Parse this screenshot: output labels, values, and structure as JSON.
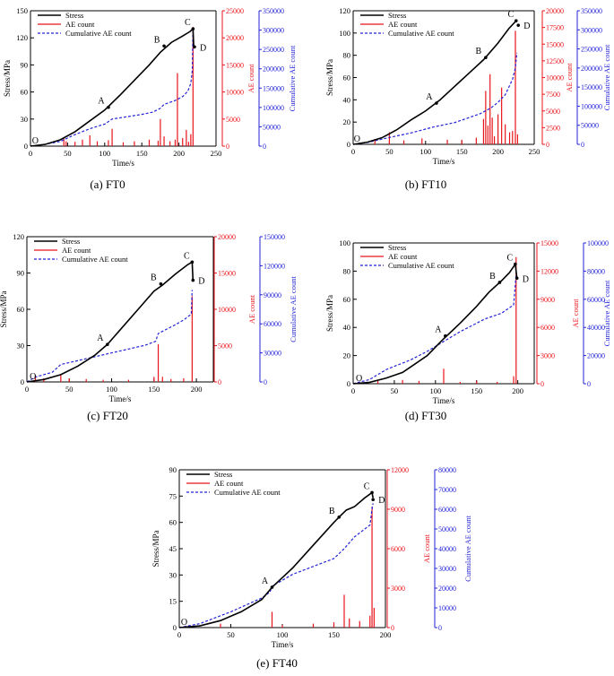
{
  "colors": {
    "stress": "#000000",
    "ae": "#e8141b",
    "cum": "#2323d6"
  },
  "chart_data": [
    {
      "type": "line",
      "caption": "(a) FT0",
      "xlabel": "Time/s",
      "ylabel_left": "Stress/MPa",
      "ylabel_ae": "AE count",
      "ylabel_cum": "Cumulative AE count",
      "xlim": [
        0,
        250
      ],
      "xticks": [
        0,
        50,
        100,
        150,
        200,
        250
      ],
      "ylim_stress": [
        0,
        150
      ],
      "yticks_stress": [
        0,
        30,
        60,
        90,
        120,
        150
      ],
      "ylim_ae": [
        0,
        25000
      ],
      "yticks_ae": [
        0,
        5000,
        10000,
        15000,
        20000,
        25000
      ],
      "ylim_cum": [
        0,
        350000
      ],
      "yticks_cum": [
        0,
        50000,
        100000,
        150000,
        200000,
        250000,
        300000,
        350000
      ],
      "legend": [
        "Stress",
        "AE count",
        "Cumulative AE count"
      ],
      "stress": [
        [
          0,
          0
        ],
        [
          20,
          2
        ],
        [
          40,
          7
        ],
        [
          60,
          16
        ],
        [
          80,
          28
        ],
        [
          100,
          40
        ],
        [
          120,
          56
        ],
        [
          140,
          73
        ],
        [
          160,
          90
        ],
        [
          175,
          104
        ],
        [
          190,
          115
        ],
        [
          205,
          122
        ],
        [
          215,
          127
        ],
        [
          219,
          130
        ],
        [
          220,
          110
        ]
      ],
      "ae_counts": [
        [
          45,
          1400
        ],
        [
          48,
          900
        ],
        [
          60,
          800
        ],
        [
          70,
          1200
        ],
        [
          80,
          2000
        ],
        [
          90,
          900
        ],
        [
          105,
          1100
        ],
        [
          110,
          3200
        ],
        [
          125,
          700
        ],
        [
          140,
          900
        ],
        [
          160,
          1200
        ],
        [
          172,
          1000
        ],
        [
          175,
          5000
        ],
        [
          180,
          1800
        ],
        [
          188,
          900
        ],
        [
          195,
          1200
        ],
        [
          198,
          13500
        ],
        [
          205,
          1500
        ],
        [
          210,
          3000
        ],
        [
          213,
          800
        ],
        [
          216,
          2200
        ],
        [
          219,
          22000
        ]
      ],
      "cumulative": [
        [
          0,
          0
        ],
        [
          20,
          5000
        ],
        [
          40,
          12000
        ],
        [
          60,
          30000
        ],
        [
          80,
          45000
        ],
        [
          100,
          57000
        ],
        [
          110,
          70000
        ],
        [
          130,
          76000
        ],
        [
          150,
          82000
        ],
        [
          165,
          88000
        ],
        [
          175,
          98000
        ],
        [
          180,
          108000
        ],
        [
          195,
          118000
        ],
        [
          205,
          128000
        ],
        [
          212,
          142000
        ],
        [
          216,
          162000
        ],
        [
          218,
          195000
        ],
        [
          219,
          305000
        ],
        [
          220,
          300000
        ]
      ],
      "points": [
        {
          "label": "O",
          "x": 4,
          "y": 0
        },
        {
          "label": "A",
          "x": 105,
          "y": 43
        },
        {
          "label": "B",
          "x": 180,
          "y": 111
        },
        {
          "label": "C",
          "x": 219,
          "y": 130
        },
        {
          "label": "D",
          "x": 221,
          "y": 110
        }
      ]
    },
    {
      "type": "line",
      "caption": "(b) FT10",
      "xlabel": "Time/s",
      "ylabel_left": "Stress/MPa",
      "ylabel_ae": "AE count",
      "ylabel_cum": "Cumulative AE count",
      "xlim": [
        0,
        250
      ],
      "xticks": [
        0,
        50,
        100,
        150,
        200,
        250
      ],
      "ylim_stress": [
        0,
        120
      ],
      "yticks_stress": [
        0,
        20,
        40,
        60,
        80,
        100,
        120
      ],
      "ylim_ae": [
        0,
        20000
      ],
      "yticks_ae": [
        0,
        2500,
        5000,
        7500,
        10000,
        12500,
        15000,
        17500,
        20000
      ],
      "ylim_cum": [
        0,
        350000
      ],
      "yticks_cum": [
        0,
        50000,
        100000,
        150000,
        200000,
        250000,
        300000,
        350000
      ],
      "legend": [
        "Stress",
        "AE count",
        "Cumulative AE count"
      ],
      "stress": [
        [
          0,
          0
        ],
        [
          20,
          2
        ],
        [
          40,
          6
        ],
        [
          60,
          13
        ],
        [
          80,
          22
        ],
        [
          100,
          30
        ],
        [
          120,
          40
        ],
        [
          140,
          52
        ],
        [
          160,
          64
        ],
        [
          180,
          76
        ],
        [
          200,
          91
        ],
        [
          215,
          104
        ],
        [
          225,
          111
        ]
      ],
      "ae_counts": [
        [
          30,
          800
        ],
        [
          50,
          1800
        ],
        [
          70,
          600
        ],
        [
          95,
          900
        ],
        [
          130,
          700
        ],
        [
          150,
          700
        ],
        [
          170,
          1000
        ],
        [
          180,
          3800
        ],
        [
          183,
          8000
        ],
        [
          186,
          2800
        ],
        [
          189,
          10500
        ],
        [
          192,
          4000
        ],
        [
          195,
          1200
        ],
        [
          200,
          4500
        ],
        [
          205,
          8500
        ],
        [
          210,
          3000
        ],
        [
          216,
          1800
        ],
        [
          220,
          2000
        ],
        [
          224,
          17000
        ],
        [
          227,
          1500
        ]
      ],
      "cumulative": [
        [
          0,
          0
        ],
        [
          20,
          5000
        ],
        [
          50,
          18000
        ],
        [
          80,
          30000
        ],
        [
          110,
          45000
        ],
        [
          140,
          57000
        ],
        [
          160,
          70000
        ],
        [
          175,
          80000
        ],
        [
          190,
          95000
        ],
        [
          200,
          110000
        ],
        [
          210,
          130000
        ],
        [
          215,
          150000
        ],
        [
          220,
          170000
        ],
        [
          224,
          200000
        ],
        [
          226,
          240000
        ]
      ],
      "points": [
        {
          "label": "O",
          "x": 3,
          "y": 0
        },
        {
          "label": "A",
          "x": 115,
          "y": 37
        },
        {
          "label": "B",
          "x": 183,
          "y": 78
        },
        {
          "label": "C",
          "x": 225,
          "y": 111
        },
        {
          "label": "D",
          "x": 228,
          "y": 107
        }
      ]
    },
    {
      "type": "line",
      "caption": "(c) FT20",
      "xlabel": "Time/s",
      "ylabel_left": "Stress/MPa",
      "ylabel_ae": "AE count",
      "ylabel_cum": "Cumulative AE count",
      "xlim": [
        0,
        220
      ],
      "xticks": [
        0,
        50,
        100,
        150,
        200
      ],
      "ylim_stress": [
        0,
        120
      ],
      "yticks_stress": [
        0,
        30,
        60,
        90,
        120
      ],
      "ylim_ae": [
        0,
        20000
      ],
      "yticks_ae": [
        0,
        5000,
        10000,
        15000,
        20000
      ],
      "ylim_cum": [
        0,
        150000
      ],
      "yticks_cum": [
        0,
        30000,
        60000,
        90000,
        120000,
        150000
      ],
      "legend": [
        "Stress",
        "AE count",
        "Cumulative AE count"
      ],
      "stress": [
        [
          0,
          0
        ],
        [
          20,
          2
        ],
        [
          40,
          6
        ],
        [
          60,
          13
        ],
        [
          80,
          22
        ],
        [
          95,
          31
        ],
        [
          110,
          43
        ],
        [
          130,
          59
        ],
        [
          150,
          75
        ],
        [
          160,
          80
        ],
        [
          175,
          89
        ],
        [
          190,
          97
        ],
        [
          195,
          99
        ],
        [
          196,
          84
        ]
      ],
      "ae_counts": [
        [
          10,
          900
        ],
        [
          20,
          500
        ],
        [
          40,
          1100
        ],
        [
          50,
          500
        ],
        [
          70,
          400
        ],
        [
          90,
          300
        ],
        [
          120,
          300
        ],
        [
          150,
          700
        ],
        [
          155,
          5200
        ],
        [
          160,
          700
        ],
        [
          170,
          400
        ],
        [
          185,
          500
        ],
        [
          195,
          11800
        ]
      ],
      "cumulative": [
        [
          0,
          0
        ],
        [
          10,
          5000
        ],
        [
          30,
          10000
        ],
        [
          40,
          18000
        ],
        [
          60,
          22000
        ],
        [
          80,
          26000
        ],
        [
          100,
          30000
        ],
        [
          120,
          34000
        ],
        [
          140,
          38000
        ],
        [
          152,
          42000
        ],
        [
          155,
          50000
        ],
        [
          175,
          59000
        ],
        [
          185,
          64000
        ],
        [
          194,
          70000
        ],
        [
          195,
          95000
        ]
      ],
      "points": [
        {
          "label": "O",
          "x": 5,
          "y": 0
        },
        {
          "label": "A",
          "x": 95,
          "y": 31
        },
        {
          "label": "B",
          "x": 158,
          "y": 81
        },
        {
          "label": "C",
          "x": 195,
          "y": 99
        },
        {
          "label": "D",
          "x": 196,
          "y": 84
        }
      ]
    },
    {
      "type": "line",
      "caption": "(d) FT30",
      "xlabel": "Time/s",
      "ylabel_left": "Stress/MPa",
      "ylabel_ae": "AE count",
      "ylabel_cum": "Cumulative AE count",
      "xlim": [
        0,
        220
      ],
      "xticks": [
        0,
        50,
        100,
        150,
        200
      ],
      "ylim_stress": [
        0,
        100
      ],
      "yticks_stress": [
        0,
        20,
        40,
        60,
        80,
        100
      ],
      "ylim_ae": [
        0,
        15000
      ],
      "yticks_ae": [
        0,
        3000,
        6000,
        9000,
        12000,
        15000
      ],
      "ylim_cum": [
        0,
        100000
      ],
      "yticks_cum": [
        0,
        20000,
        40000,
        60000,
        80000,
        100000
      ],
      "legend": [
        "Stress",
        "AE count",
        "Cumulative AE count"
      ],
      "stress": [
        [
          0,
          0
        ],
        [
          20,
          1
        ],
        [
          40,
          4
        ],
        [
          60,
          8
        ],
        [
          70,
          12
        ],
        [
          90,
          20
        ],
        [
          110,
          32
        ],
        [
          130,
          43
        ],
        [
          150,
          55
        ],
        [
          165,
          65
        ],
        [
          180,
          73
        ],
        [
          190,
          79
        ],
        [
          197,
          85
        ],
        [
          199,
          75
        ]
      ],
      "ae_counts": [
        [
          30,
          300
        ],
        [
          60,
          400
        ],
        [
          80,
          300
        ],
        [
          110,
          1600
        ],
        [
          130,
          200
        ],
        [
          150,
          300
        ],
        [
          175,
          200
        ],
        [
          195,
          800
        ],
        [
          198,
          13500
        ]
      ],
      "cumulative": [
        [
          0,
          0
        ],
        [
          20,
          3000
        ],
        [
          40,
          10000
        ],
        [
          70,
          17000
        ],
        [
          90,
          23000
        ],
        [
          110,
          30000
        ],
        [
          130,
          37000
        ],
        [
          160,
          46000
        ],
        [
          180,
          50000
        ],
        [
          195,
          56000
        ],
        [
          198,
          78000
        ]
      ],
      "points": [
        {
          "label": "O",
          "x": 5,
          "y": 0
        },
        {
          "label": "A",
          "x": 112,
          "y": 34
        },
        {
          "label": "B",
          "x": 178,
          "y": 72
        },
        {
          "label": "C",
          "x": 197,
          "y": 85
        },
        {
          "label": "D",
          "x": 199,
          "y": 75
        }
      ]
    },
    {
      "type": "line",
      "caption": "(e) FT40",
      "xlabel": "Time/s",
      "ylabel_left": "Stress/MPa",
      "ylabel_ae": "AE count",
      "ylabel_cum": "Cumulative AE count",
      "xlim": [
        0,
        200
      ],
      "xticks": [
        0,
        50,
        100,
        150,
        200
      ],
      "ylim_stress": [
        0,
        90
      ],
      "yticks_stress": [
        0,
        15,
        30,
        45,
        60,
        75,
        90
      ],
      "ylim_ae": [
        0,
        12000
      ],
      "yticks_ae": [
        0,
        3000,
        6000,
        9000,
        12000
      ],
      "ylim_cum": [
        0,
        80000
      ],
      "yticks_cum": [
        0,
        10000,
        20000,
        30000,
        40000,
        50000,
        60000,
        70000,
        80000
      ],
      "legend": [
        "Stress",
        "AE count",
        "Cumulative AE count"
      ],
      "stress": [
        [
          0,
          0
        ],
        [
          20,
          1
        ],
        [
          40,
          4
        ],
        [
          60,
          9
        ],
        [
          80,
          16
        ],
        [
          90,
          23
        ],
        [
          110,
          34
        ],
        [
          130,
          47
        ],
        [
          150,
          60
        ],
        [
          155,
          63
        ],
        [
          162,
          67
        ],
        [
          170,
          69
        ],
        [
          180,
          74
        ],
        [
          187,
          77
        ],
        [
          188,
          74
        ]
      ],
      "ae_counts": [
        [
          40,
          300
        ],
        [
          90,
          1200
        ],
        [
          100,
          200
        ],
        [
          130,
          300
        ],
        [
          150,
          400
        ],
        [
          160,
          2500
        ],
        [
          165,
          700
        ],
        [
          175,
          500
        ],
        [
          185,
          900
        ],
        [
          187,
          9200
        ],
        [
          189,
          1500
        ]
      ],
      "cumulative": [
        [
          0,
          0
        ],
        [
          20,
          2000
        ],
        [
          50,
          8000
        ],
        [
          80,
          15000
        ],
        [
          88,
          18000
        ],
        [
          90,
          21000
        ],
        [
          110,
          27000
        ],
        [
          130,
          31000
        ],
        [
          150,
          35000
        ],
        [
          160,
          40000
        ],
        [
          170,
          46000
        ],
        [
          185,
          52000
        ],
        [
          187,
          60000
        ],
        [
          188,
          63000
        ]
      ],
      "points": [
        {
          "label": "O",
          "x": 3,
          "y": 0
        },
        {
          "label": "A",
          "x": 90,
          "y": 23
        },
        {
          "label": "B",
          "x": 155,
          "y": 63
        },
        {
          "label": "C",
          "x": 187,
          "y": 77
        },
        {
          "label": "D",
          "x": 188,
          "y": 73
        }
      ]
    }
  ]
}
